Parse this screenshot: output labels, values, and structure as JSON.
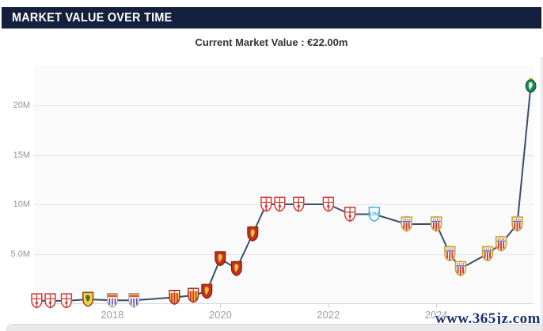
{
  "header": {
    "title": "MARKET VALUE OVER TIME"
  },
  "summary": {
    "current_market_value_label": "Current Market Value : €22.00m"
  },
  "watermark": {
    "text": "www.365jz.com"
  },
  "colors": {
    "header_bg": "#14213e",
    "line": "#3a4d68",
    "plot_bg": "#fafafa",
    "grid": "#e6e7ea",
    "axis_label": "#9aa0a6",
    "watermark": "#1c2e70"
  },
  "chart_data": {
    "type": "line",
    "title": "MARKET VALUE OVER TIME",
    "unit": "€ million",
    "xlabel": "",
    "ylabel": "",
    "grid": true,
    "legend_position": "none",
    "marker_style": "club-crest",
    "xlim": [
      2016.55,
      2025.8
    ],
    "ylim": [
      0,
      24
    ],
    "x_ticks": [
      {
        "year": 2018,
        "label": "2018"
      },
      {
        "year": 2020,
        "label": "2020"
      },
      {
        "year": 2022,
        "label": "2022"
      },
      {
        "year": 2024,
        "label": "2024"
      }
    ],
    "y_ticks": [
      {
        "value": 5,
        "label": "5.0M"
      },
      {
        "value": 10,
        "label": "10M"
      },
      {
        "value": 15,
        "label": "15M"
      },
      {
        "value": 20,
        "label": "20M"
      }
    ],
    "series": [
      {
        "name": "market-value",
        "points": [
          {
            "year": 2016.6,
            "value_m": 0.25,
            "crest": "red-cross"
          },
          {
            "year": 2016.85,
            "value_m": 0.25,
            "crest": "red-cross"
          },
          {
            "year": 2017.15,
            "value_m": 0.25,
            "crest": "red-cross"
          },
          {
            "year": 2017.55,
            "value_m": 0.4,
            "crest": "yellow-lion"
          },
          {
            "year": 2018.0,
            "value_m": 0.3,
            "crest": "purple-stripes"
          },
          {
            "year": 2018.4,
            "value_m": 0.3,
            "crest": "purple-stripes"
          },
          {
            "year": 2019.15,
            "value_m": 0.6,
            "crest": "red-yellow-stripes"
          },
          {
            "year": 2019.5,
            "value_m": 0.8,
            "crest": "red-yellow-stripes"
          },
          {
            "year": 2019.75,
            "value_m": 1.2,
            "crest": "red-lion"
          },
          {
            "year": 2020.0,
            "value_m": 4.5,
            "crest": "red-lion"
          },
          {
            "year": 2020.3,
            "value_m": 3.5,
            "crest": "red-lion"
          },
          {
            "year": 2020.6,
            "value_m": 7.0,
            "crest": "red-lion"
          },
          {
            "year": 2020.85,
            "value_m": 10.0,
            "crest": "red-cross"
          },
          {
            "year": 2021.1,
            "value_m": 10.0,
            "crest": "red-cross"
          },
          {
            "year": 2021.45,
            "value_m": 10.0,
            "crest": "red-cross"
          },
          {
            "year": 2022.0,
            "value_m": 10.0,
            "crest": "red-cross"
          },
          {
            "year": 2022.4,
            "value_m": 9.0,
            "crest": "red-cross"
          },
          {
            "year": 2022.85,
            "value_m": 9.0,
            "crest": "blue-om"
          },
          {
            "year": 2023.45,
            "value_m": 8.0,
            "crest": "gold-striped"
          },
          {
            "year": 2024.0,
            "value_m": 8.0,
            "crest": "gold-striped"
          },
          {
            "year": 2024.25,
            "value_m": 5.0,
            "crest": "gold-striped"
          },
          {
            "year": 2024.45,
            "value_m": 3.5,
            "crest": "gold-striped"
          },
          {
            "year": 2024.95,
            "value_m": 5.0,
            "crest": "gold-striped"
          },
          {
            "year": 2025.2,
            "value_m": 6.0,
            "crest": "gold-striped"
          },
          {
            "year": 2025.5,
            "value_m": 8.0,
            "crest": "gold-striped"
          },
          {
            "year": 2025.75,
            "value_m": 22.0,
            "crest": "green-roundel"
          }
        ]
      }
    ]
  }
}
